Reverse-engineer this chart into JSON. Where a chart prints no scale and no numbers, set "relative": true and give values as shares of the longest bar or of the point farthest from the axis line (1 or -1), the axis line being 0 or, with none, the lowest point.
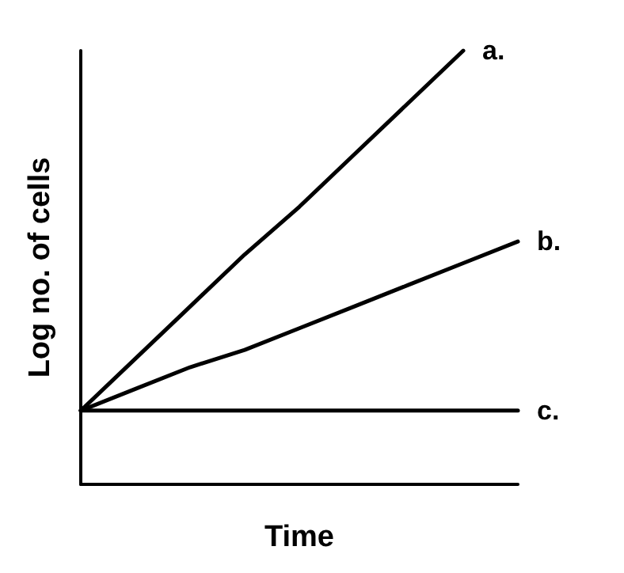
{
  "chart_data": {
    "type": "line",
    "xlabel": "Time",
    "ylabel": "Log no. of cells",
    "relative": true,
    "categories": [
      null,
      null,
      null,
      null,
      null,
      null,
      null,
      null,
      null
    ],
    "series": [
      {
        "name": "a.",
        "color": "#000000",
        "values": [
          0.17,
          0.29,
          0.41,
          0.53,
          0.64,
          0.76,
          0.88,
          1.0,
          null
        ]
      },
      {
        "name": "b.",
        "color": "#000000",
        "values": [
          0.17,
          0.22,
          0.27,
          0.31,
          0.36,
          0.41,
          0.46,
          0.51,
          0.56
        ]
      },
      {
        "name": "c.",
        "color": "#000000",
        "values": [
          0.17,
          0.17,
          0.17,
          0.17,
          0.17,
          0.17,
          0.17,
          0.17,
          0.17
        ]
      }
    ],
    "legend": false,
    "grid": false,
    "marker": "none",
    "line_style": "solid"
  }
}
